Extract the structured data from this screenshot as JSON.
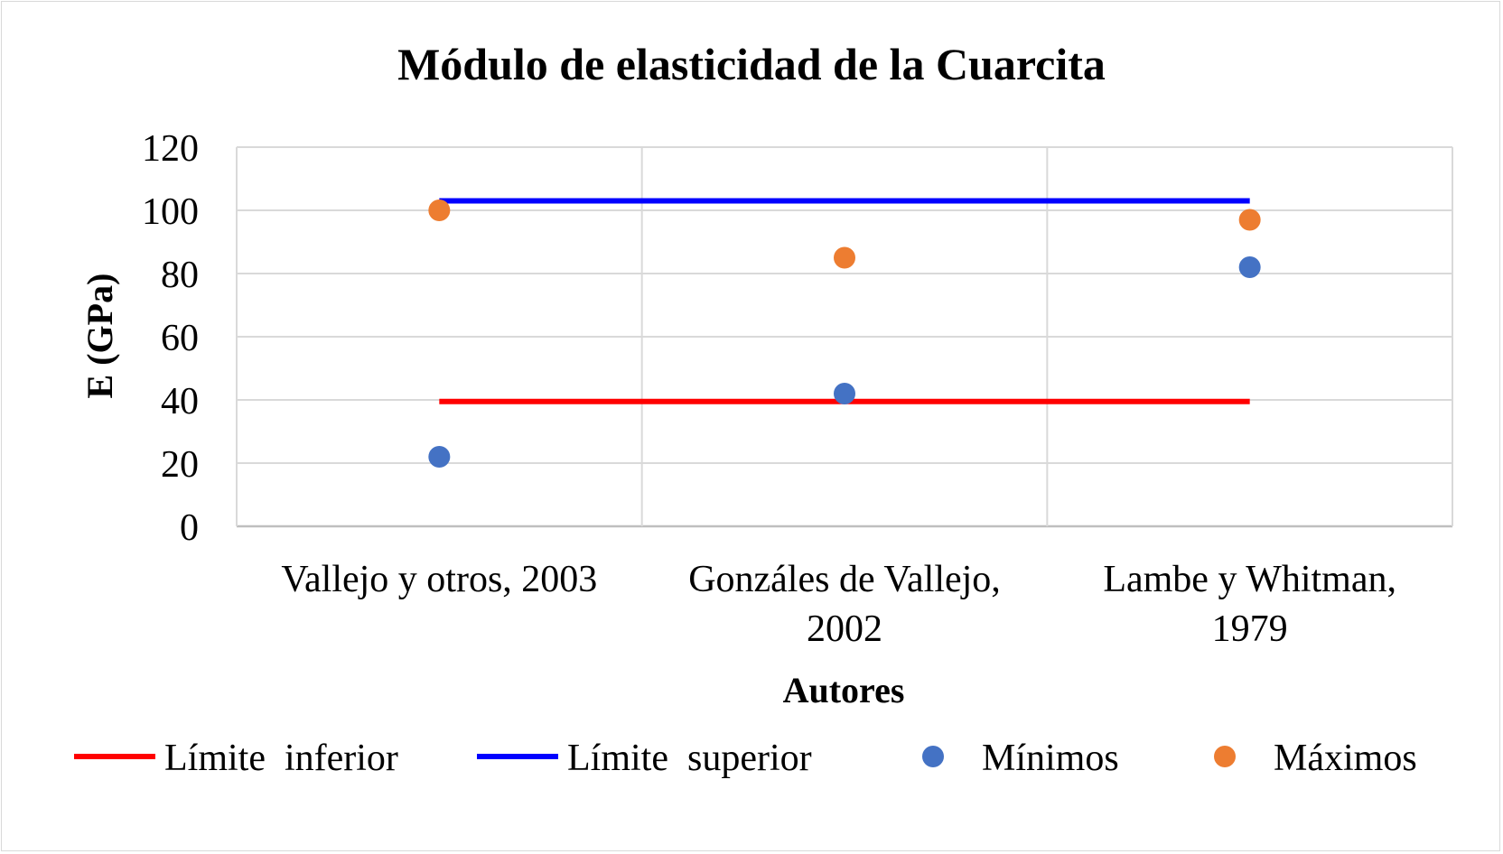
{
  "chart_data": {
    "type": "scatter",
    "title": "Módulo de elasticidad de la Cuarcita",
    "xlabel": "Autores",
    "ylabel": "E (GPa)",
    "ylim": [
      0,
      120
    ],
    "yticks": [
      0,
      20,
      40,
      60,
      80,
      100,
      120
    ],
    "grid": true,
    "legend_position": "bottom",
    "categories": [
      [
        "Vallejo y otros, 2003"
      ],
      [
        "Gonzáles de Vallejo,",
        "2002"
      ],
      [
        "Lambe y Whitman,",
        "1979"
      ]
    ],
    "series": [
      {
        "name": "Límite  inferior",
        "kind": "line",
        "color": "#ff0000",
        "values": [
          39.5,
          39.5,
          39.5
        ]
      },
      {
        "name": "Límite  superior",
        "kind": "line",
        "color": "#0000ff",
        "values": [
          103,
          103,
          103
        ]
      },
      {
        "name": "Mínimos",
        "kind": "marker",
        "color": "#4472c4",
        "values": [
          22,
          42,
          82
        ]
      },
      {
        "name": "Máximos",
        "kind": "marker",
        "color": "#ed7d31",
        "values": [
          100,
          85,
          97
        ]
      }
    ]
  }
}
